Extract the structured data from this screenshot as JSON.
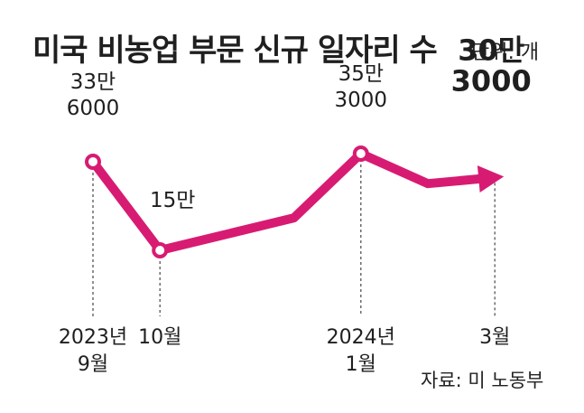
{
  "chart_data": {
    "type": "line",
    "title": "미국 비농업 부문 신규 일자리 수",
    "unit_label": "단위: 개",
    "source": "자료: 미 노동부",
    "x": [
      "2023-09",
      "2023-10",
      "2023-12",
      "2024-01",
      "2024-02",
      "2024-03"
    ],
    "x_tick_labels": [
      {
        "x": "2023-09",
        "lines": [
          "2023년",
          "9월"
        ]
      },
      {
        "x": "2023-10",
        "lines": [
          "10월"
        ]
      },
      {
        "x": "2024-01",
        "lines": [
          "2024년",
          "1월"
        ]
      },
      {
        "x": "2024-03",
        "lines": [
          "3월"
        ]
      }
    ],
    "values": [
      336000,
      150000,
      218000,
      353000,
      290000,
      303000
    ],
    "data_labels": [
      {
        "index": 0,
        "lines": [
          "33만",
          "6000"
        ],
        "bold": false
      },
      {
        "index": 1,
        "lines": [
          "15만"
        ],
        "bold": false
      },
      {
        "index": 3,
        "lines": [
          "35만",
          "3000"
        ],
        "bold": false
      },
      {
        "index": 5,
        "lines": [
          "30만",
          "3000"
        ],
        "bold": true
      }
    ],
    "marked_points": [
      0,
      1,
      3
    ],
    "arrow_end": true,
    "line_color": "#d81b72",
    "grid": false
  }
}
